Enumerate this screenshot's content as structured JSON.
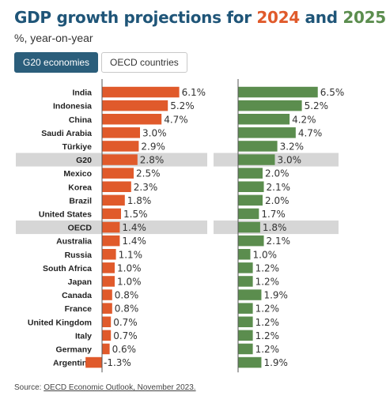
{
  "header": {
    "title_main": "GDP growth projections for ",
    "title_year1": "2024",
    "title_and": " and ",
    "title_year2": "2025",
    "subtitle": "%, year-on-year"
  },
  "tabs": [
    {
      "label": "G20 economies",
      "active": true
    },
    {
      "label": "OECD countries",
      "active": false
    }
  ],
  "source": {
    "prefix": "Source: ",
    "link": "OECD Economic Outlook, November 2023."
  },
  "colors": {
    "y2024": "#e05a2b",
    "y2025": "#5b8d4e",
    "highlight_band": "#d6d6d6",
    "title": "#1f5578"
  },
  "chart_data": {
    "type": "bar",
    "orientation": "horizontal",
    "title": "GDP growth projections for 2024 and 2025",
    "subtitle": "%, year-on-year",
    "categories": [
      "India",
      "Indonesia",
      "China",
      "Saudi Arabia",
      "Türkiye",
      "G20",
      "Mexico",
      "Korea",
      "Brazil",
      "United States",
      "OECD",
      "Australia",
      "Russia",
      "South Africa",
      "Japan",
      "Canada",
      "France",
      "United Kingdom",
      "Italy",
      "Germany",
      "Argentina"
    ],
    "highlighted": [
      "G20",
      "OECD"
    ],
    "series": [
      {
        "name": "2024",
        "values": [
          6.1,
          5.2,
          4.7,
          3.0,
          2.9,
          2.8,
          2.5,
          2.3,
          1.8,
          1.5,
          1.4,
          1.4,
          1.1,
          1.0,
          1.0,
          0.8,
          0.8,
          0.7,
          0.7,
          0.6,
          -1.3
        ]
      },
      {
        "name": "2025",
        "values": [
          6.5,
          5.2,
          4.2,
          4.7,
          3.2,
          3.0,
          2.0,
          2.1,
          2.0,
          1.7,
          1.8,
          2.1,
          1.0,
          1.2,
          1.2,
          1.9,
          1.2,
          1.2,
          1.2,
          1.2,
          1.9
        ]
      }
    ],
    "value_format": "one decimal with %",
    "grid": false
  }
}
